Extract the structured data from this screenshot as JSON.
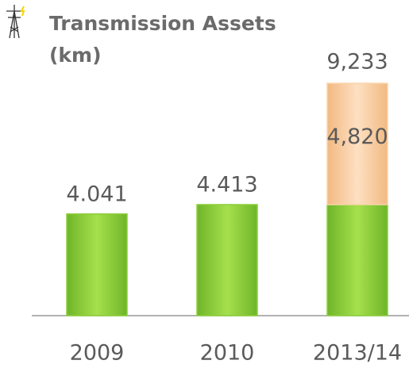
{
  "chart_data": {
    "type": "stacked-bar",
    "title": "Transmission Assets",
    "subtitle": "(km)",
    "categories": [
      "2009",
      "2010",
      "2013/14"
    ],
    "series": [
      {
        "color": "#8cd03a",
        "values": [
          4041,
          4413,
          4413
        ],
        "value_labels": [
          "4.041",
          "4.413",
          null
        ]
      },
      {
        "color": "#fcd3aa",
        "values": [
          null,
          null,
          4820
        ],
        "value_labels": [
          null,
          null,
          "4,820"
        ]
      }
    ],
    "annotation": "9,233"
  }
}
